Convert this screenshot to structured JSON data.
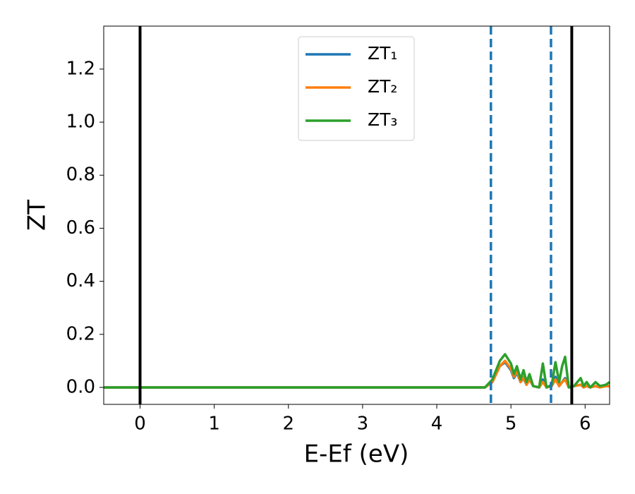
{
  "chart_data": {
    "type": "line",
    "xlabel": "E-Ef (eV)",
    "ylabel": "ZT",
    "x": [
      -0.49,
      4.65,
      4.75,
      4.85,
      4.92,
      5.0,
      5.04,
      5.08,
      5.13,
      5.17,
      5.21,
      5.25,
      5.3,
      5.38,
      5.43,
      5.48,
      5.55,
      5.6,
      5.65,
      5.69,
      5.73,
      5.78,
      5.85,
      5.94,
      5.98,
      6.02,
      6.07,
      6.14,
      6.2,
      6.28,
      6.33
    ],
    "series": [
      {
        "name": "ZT₁",
        "color": "#1f77b4",
        "values": [
          0,
          0,
          0.02,
          0.08,
          0.095,
          0.065,
          0.035,
          0.055,
          0.02,
          0.035,
          0.01,
          0.03,
          0.005,
          0,
          0.03,
          0,
          0.005,
          0.04,
          0.005,
          0.02,
          0.035,
          0,
          0.005,
          0.01,
          0,
          0.005,
          0,
          0.005,
          0,
          0.005,
          0.005
        ]
      },
      {
        "name": "ZT₂",
        "color": "#ff7f0e",
        "values": [
          0,
          0,
          0.02,
          0.08,
          0.1,
          0.07,
          0.04,
          0.06,
          0.02,
          0.04,
          0.01,
          0.03,
          0.005,
          0,
          0.02,
          0,
          0.005,
          0.03,
          0.005,
          0.02,
          0.03,
          0,
          0.005,
          0.01,
          0,
          0.005,
          0,
          0.005,
          0,
          0.005,
          0.005
        ]
      },
      {
        "name": "ZT₃",
        "color": "#2ca02c",
        "values": [
          0,
          0,
          0.03,
          0.1,
          0.125,
          0.09,
          0.05,
          0.08,
          0.03,
          0.065,
          0.02,
          0.05,
          0.005,
          0,
          0.09,
          0,
          0.01,
          0.095,
          0.02,
          0.08,
          0.115,
          0,
          0.005,
          0.035,
          0.005,
          0.02,
          0,
          0.02,
          0.005,
          0.01,
          0.02
        ]
      }
    ],
    "vlines": [
      {
        "x": 0,
        "color": "#000000",
        "style": "solid"
      },
      {
        "x": 4.73,
        "color": "#1f77b4",
        "style": "dashed"
      },
      {
        "x": 5.54,
        "color": "#1f77b4",
        "style": "dashed"
      },
      {
        "x": 5.82,
        "color": "#000000",
        "style": "solid"
      }
    ],
    "xlim": [
      -0.49,
      6.33
    ],
    "ylim": [
      -0.064,
      1.362
    ],
    "xticks": [
      0,
      1,
      2,
      3,
      4,
      5,
      6
    ],
    "yticks": [
      {
        "value": 0,
        "label": "0.0"
      },
      {
        "value": 0.2,
        "label": "0.2"
      },
      {
        "value": 0.4,
        "label": "0.4"
      },
      {
        "value": 0.6,
        "label": "0.6"
      },
      {
        "value": 0.8,
        "label": "0.8"
      },
      {
        "value": 1.0,
        "label": "1.0"
      },
      {
        "value": 1.2,
        "label": "1.2"
      }
    ],
    "legend": "upper center",
    "grid": false
  }
}
